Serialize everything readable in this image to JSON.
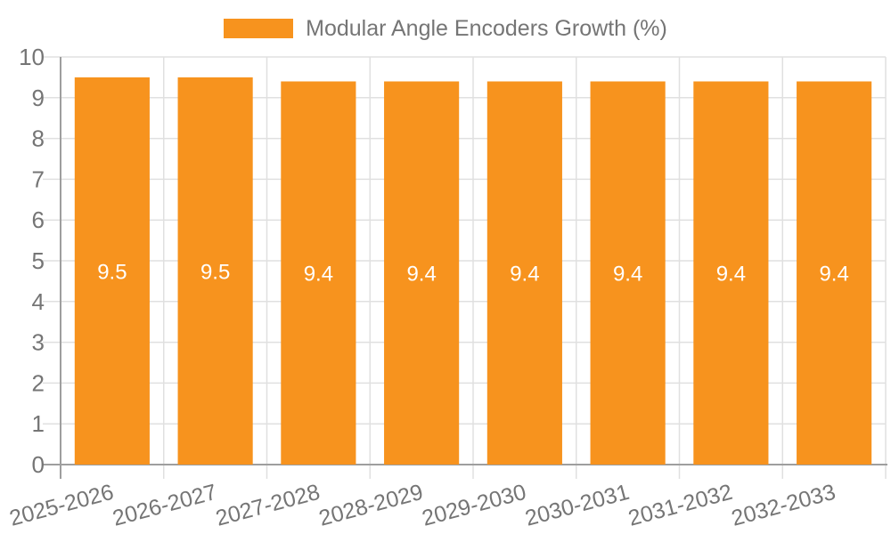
{
  "legend": {
    "label": "Modular Angle Encoders Growth (%)"
  },
  "chart_data": {
    "type": "bar",
    "title": "Modular Angle Encoders Growth (%)",
    "categories": [
      "2025-2026",
      "2026-2027",
      "2027-2028",
      "2028-2029",
      "2029-2030",
      "2030-2031",
      "2031-2032",
      "2032-2033"
    ],
    "values": [
      9.5,
      9.5,
      9.4,
      9.4,
      9.4,
      9.4,
      9.4,
      9.4
    ],
    "bar_labels": [
      "9.5",
      "9.5",
      "9.4",
      "9.4",
      "9.4",
      "9.4",
      "9.4",
      "9.4"
    ],
    "xlabel": "",
    "ylabel": "",
    "ylim": [
      0,
      10
    ],
    "yticks": [
      0,
      1,
      2,
      3,
      4,
      5,
      6,
      7,
      8,
      9,
      10
    ],
    "grid": true,
    "legend_position": "top",
    "x_label_rotation_deg": -15,
    "colors": {
      "bar": "#F7931E",
      "bar_label": "#FFFFFF",
      "label_text": "#757575",
      "gridline": "#E0E0E0",
      "axis_line": "#9E9E9E",
      "background": "#FFFFFF"
    }
  }
}
